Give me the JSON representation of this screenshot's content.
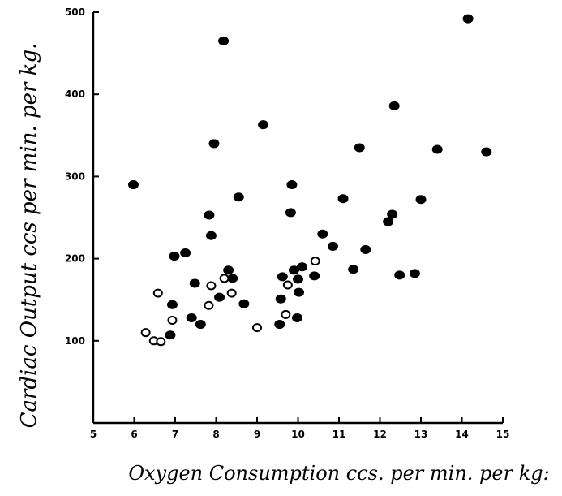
{
  "chart_data": {
    "type": "scatter",
    "title": "",
    "xlabel": "Oxygen Consumption ccs. per min. per kg:",
    "ylabel": "Cardiac Output ccs per min. per kg.",
    "xlim": [
      5,
      15
    ],
    "ylim": [
      0,
      500
    ],
    "xticks": [
      "5",
      "6",
      "7",
      "8",
      "9",
      "10",
      "11",
      "12",
      "13",
      "14",
      "15"
    ],
    "yticks": [
      "100",
      "200",
      "300",
      "400",
      "500"
    ],
    "grid": false,
    "series": [
      {
        "marker": "filled",
        "points": [
          [
            5.98,
            290
          ],
          [
            6.93,
            144
          ],
          [
            6.88,
            107
          ],
          [
            6.98,
            203
          ],
          [
            7.25,
            207
          ],
          [
            7.4,
            128
          ],
          [
            7.48,
            170
          ],
          [
            7.62,
            120
          ],
          [
            7.83,
            253
          ],
          [
            7.88,
            228
          ],
          [
            7.95,
            340
          ],
          [
            8.08,
            153
          ],
          [
            8.18,
            465
          ],
          [
            8.3,
            186
          ],
          [
            8.4,
            176
          ],
          [
            8.55,
            275
          ],
          [
            8.68,
            145
          ],
          [
            9.15,
            363
          ],
          [
            9.55,
            120
          ],
          [
            9.58,
            151
          ],
          [
            9.62,
            178
          ],
          [
            9.82,
            256
          ],
          [
            9.85,
            290
          ],
          [
            9.9,
            186
          ],
          [
            9.98,
            128
          ],
          [
            10.0,
            175
          ],
          [
            10.02,
            159
          ],
          [
            10.1,
            190
          ],
          [
            10.4,
            179
          ],
          [
            10.6,
            230
          ],
          [
            10.85,
            215
          ],
          [
            11.1,
            273
          ],
          [
            11.35,
            187
          ],
          [
            11.5,
            335
          ],
          [
            11.65,
            211
          ],
          [
            12.2,
            245
          ],
          [
            12.3,
            254
          ],
          [
            12.35,
            386
          ],
          [
            12.48,
            180
          ],
          [
            12.85,
            182
          ],
          [
            13.0,
            272
          ],
          [
            13.4,
            333
          ],
          [
            14.15,
            492
          ],
          [
            14.6,
            330
          ]
        ]
      },
      {
        "marker": "open",
        "points": [
          [
            6.28,
            110
          ],
          [
            6.48,
            100
          ],
          [
            6.65,
            99
          ],
          [
            6.58,
            158
          ],
          [
            6.93,
            125
          ],
          [
            7.82,
            143
          ],
          [
            7.88,
            167
          ],
          [
            8.2,
            176
          ],
          [
            8.38,
            158
          ],
          [
            9.0,
            116
          ],
          [
            9.7,
            132
          ],
          [
            9.75,
            168
          ],
          [
            10.42,
            197
          ]
        ]
      }
    ]
  }
}
